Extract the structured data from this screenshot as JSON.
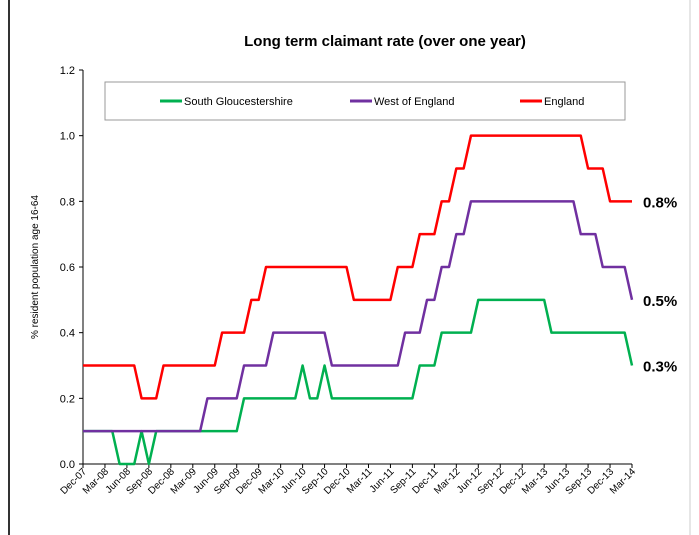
{
  "chart_data": {
    "type": "line",
    "title": "Long term claimant rate (over one year)",
    "y_label": "% resident population age 16-64",
    "categories": [
      "Dec-07",
      null,
      null,
      "Mar-08",
      null,
      null,
      "Jun-08",
      null,
      null,
      "Sep-08",
      null,
      null,
      "Dec-08",
      null,
      null,
      "Mar-09",
      null,
      null,
      "Jun-09",
      null,
      null,
      "Sep-09",
      null,
      null,
      "Dec-09",
      null,
      null,
      "Mar-10",
      null,
      null,
      "Jun-10",
      null,
      null,
      "Sep-10",
      null,
      null,
      "Dec-10",
      null,
      null,
      "Mar-11",
      null,
      null,
      "Jun-11",
      null,
      null,
      "Sep-11",
      null,
      null,
      "Dec-11",
      null,
      null,
      "Mar-12",
      null,
      null,
      "Jun-12",
      null,
      null,
      "Sep-12",
      null,
      null,
      "Dec-12",
      null,
      null,
      "Mar-13",
      null,
      null,
      "Jun-13",
      null,
      null,
      "Sep-13",
      null,
      null,
      "Dec-13",
      null,
      null,
      "Mar-14"
    ],
    "series": [
      {
        "name": "South Gloucestershire",
        "color": "#00b050",
        "values": [
          0.1,
          0.1,
          0.1,
          0.1,
          0.1,
          0,
          0,
          0,
          0.1,
          0,
          0.1,
          0.1,
          0.1,
          0.1,
          0.1,
          0.1,
          0.1,
          0.1,
          0.1,
          0.1,
          0.1,
          0.1,
          0.2,
          0.2,
          0.2,
          0.2,
          0.2,
          0.2,
          0.2,
          0.2,
          0.3,
          0.2,
          0.2,
          0.3,
          0.2,
          0.2,
          0.2,
          0.2,
          0.2,
          0.2,
          0.2,
          0.2,
          0.2,
          0.2,
          0.2,
          0.2,
          0.3,
          0.3,
          0.3,
          0.4,
          0.4,
          0.4,
          0.4,
          0.4,
          0.5,
          0.5,
          0.5,
          0.5,
          0.5,
          0.5,
          0.5,
          0.5,
          0.5,
          0.5,
          0.4,
          0.4,
          0.4,
          0.4,
          0.4,
          0.4,
          0.4,
          0.4,
          0.4,
          0.4,
          0.4,
          0.3
        ]
      },
      {
        "name": "West of England",
        "color": "#7030a0",
        "values": [
          0.1,
          0.1,
          0.1,
          0.1,
          0.1,
          0.1,
          0.1,
          0.1,
          0.1,
          0.1,
          0.1,
          0.1,
          0.1,
          0.1,
          0.1,
          0.1,
          0.1,
          0.2,
          0.2,
          0.2,
          0.2,
          0.2,
          0.3,
          0.3,
          0.3,
          0.3,
          0.4,
          0.4,
          0.4,
          0.4,
          0.4,
          0.4,
          0.4,
          0.4,
          0.3,
          0.3,
          0.3,
          0.3,
          0.3,
          0.3,
          0.3,
          0.3,
          0.3,
          0.3,
          0.4,
          0.4,
          0.4,
          0.5,
          0.5,
          0.6,
          0.6,
          0.7,
          0.7,
          0.8,
          0.8,
          0.8,
          0.8,
          0.8,
          0.8,
          0.8,
          0.8,
          0.8,
          0.8,
          0.8,
          0.8,
          0.8,
          0.8,
          0.8,
          0.7,
          0.7,
          0.7,
          0.6,
          0.6,
          0.6,
          0.6,
          0.5
        ]
      },
      {
        "name": "England",
        "color": "#ff0000",
        "values": [
          0.3,
          0.3,
          0.3,
          0.3,
          0.3,
          0.3,
          0.3,
          0.3,
          0.2,
          0.2,
          0.2,
          0.3,
          0.3,
          0.3,
          0.3,
          0.3,
          0.3,
          0.3,
          0.3,
          0.4,
          0.4,
          0.4,
          0.4,
          0.5,
          0.5,
          0.6,
          0.6,
          0.6,
          0.6,
          0.6,
          0.6,
          0.6,
          0.6,
          0.6,
          0.6,
          0.6,
          0.6,
          0.5,
          0.5,
          0.5,
          0.5,
          0.5,
          0.5,
          0.6,
          0.6,
          0.6,
          0.7,
          0.7,
          0.7,
          0.8,
          0.8,
          0.9,
          0.9,
          1.0,
          1.0,
          1.0,
          1.0,
          1.0,
          1.0,
          1.0,
          1.0,
          1.0,
          1.0,
          1.0,
          1.0,
          1.0,
          1.0,
          1.0,
          1.0,
          0.9,
          0.9,
          0.9,
          0.8,
          0.8,
          0.8,
          0.8
        ]
      }
    ],
    "ylim": [
      0,
      1.2
    ],
    "yticks": [
      {
        "value": 0,
        "label": "0.0"
      },
      0.2,
      0.4,
      0.6,
      0.8,
      {
        "value": 1,
        "label": "1.0"
      },
      1.2
    ],
    "annotations": [
      "0.8%",
      "0.5%",
      "0.3%"
    ],
    "legend": "top"
  }
}
